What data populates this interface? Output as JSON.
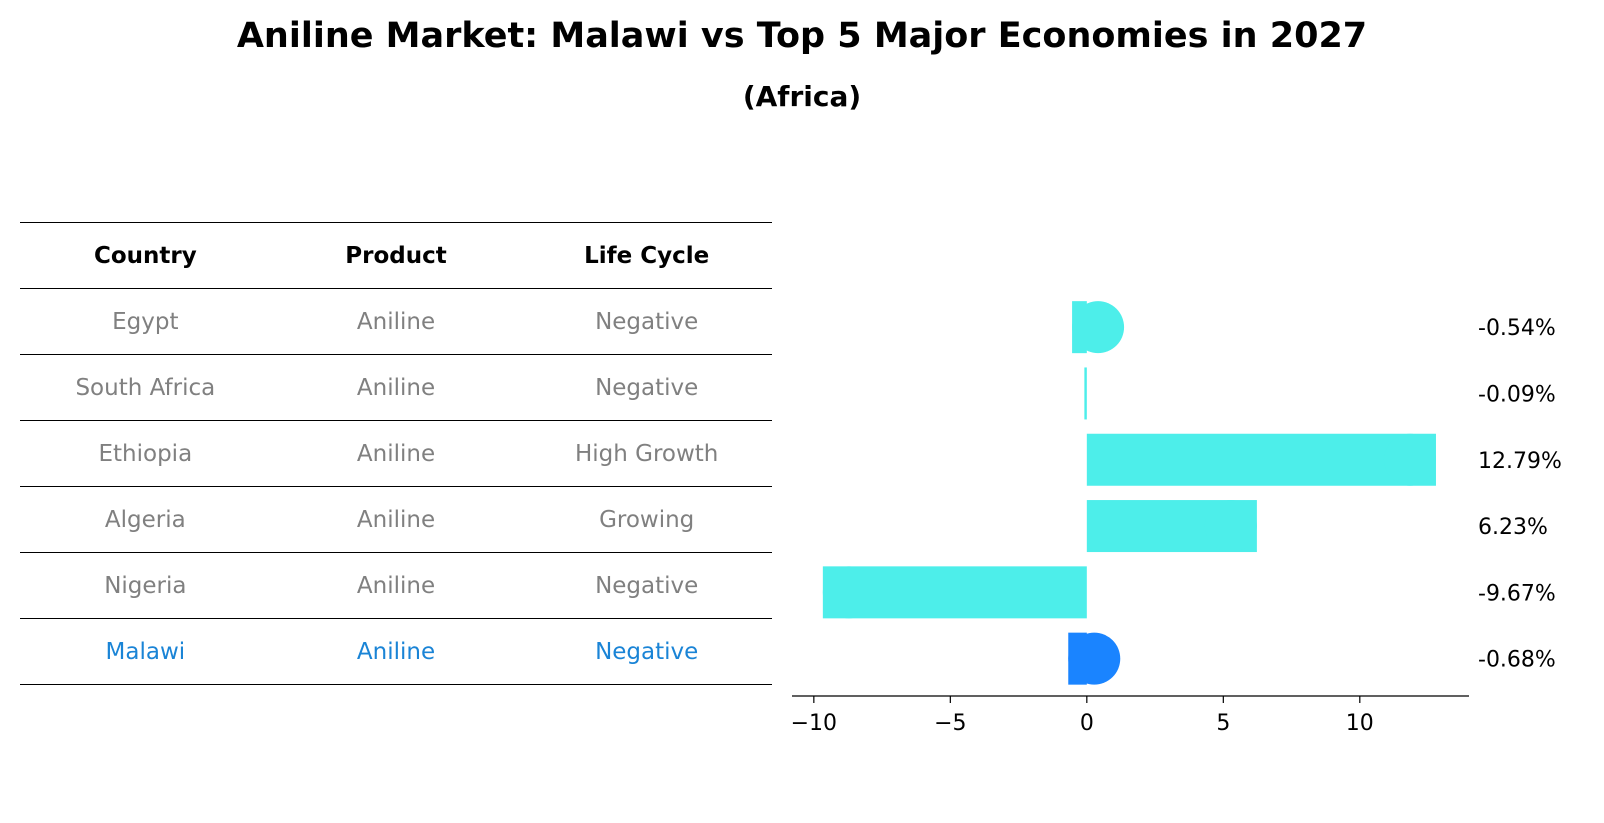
{
  "title": "Aniline Market: Malawi vs Top 5 Major Economies in 2027",
  "subtitle": "(Africa)",
  "table": {
    "headers": [
      "Country",
      "Product",
      "Life Cycle"
    ],
    "rows": [
      {
        "country": "Egypt",
        "product": "Aniline",
        "life_cycle": "Negative"
      },
      {
        "country": "South Africa",
        "product": "Aniline",
        "life_cycle": "Negative"
      },
      {
        "country": "Ethiopia",
        "product": "Aniline",
        "life_cycle": "High Growth"
      },
      {
        "country": "Algeria",
        "product": "Aniline",
        "life_cycle": "Growing"
      },
      {
        "country": "Nigeria",
        "product": "Aniline",
        "life_cycle": "Negative"
      },
      {
        "country": "Malawi",
        "product": "Aniline",
        "life_cycle": "Negative"
      }
    ],
    "highlight_row": 5,
    "highlight_color": "#1a84d6",
    "text_color": "#808080"
  },
  "chart_data": {
    "type": "bar",
    "orientation": "horizontal",
    "categories": [
      "Egypt",
      "South Africa",
      "Ethiopia",
      "Algeria",
      "Nigeria",
      "Malawi"
    ],
    "values": [
      -0.54,
      -0.09,
      12.79,
      6.23,
      -9.67,
      -0.68
    ],
    "value_labels": [
      "-0.54%",
      "-0.09%",
      "12.79%",
      "6.23%",
      "-9.67%",
      "-0.68%"
    ],
    "xlim": [
      -10.8,
      14
    ],
    "xticks": [
      -10,
      -5,
      0,
      5,
      10
    ],
    "xtick_labels": [
      "−10",
      "−5",
      "0",
      "5",
      "10"
    ],
    "bar_color": "#4deeea",
    "highlight_color": "#1a84ff",
    "highlight_index": 5,
    "grid": false
  }
}
